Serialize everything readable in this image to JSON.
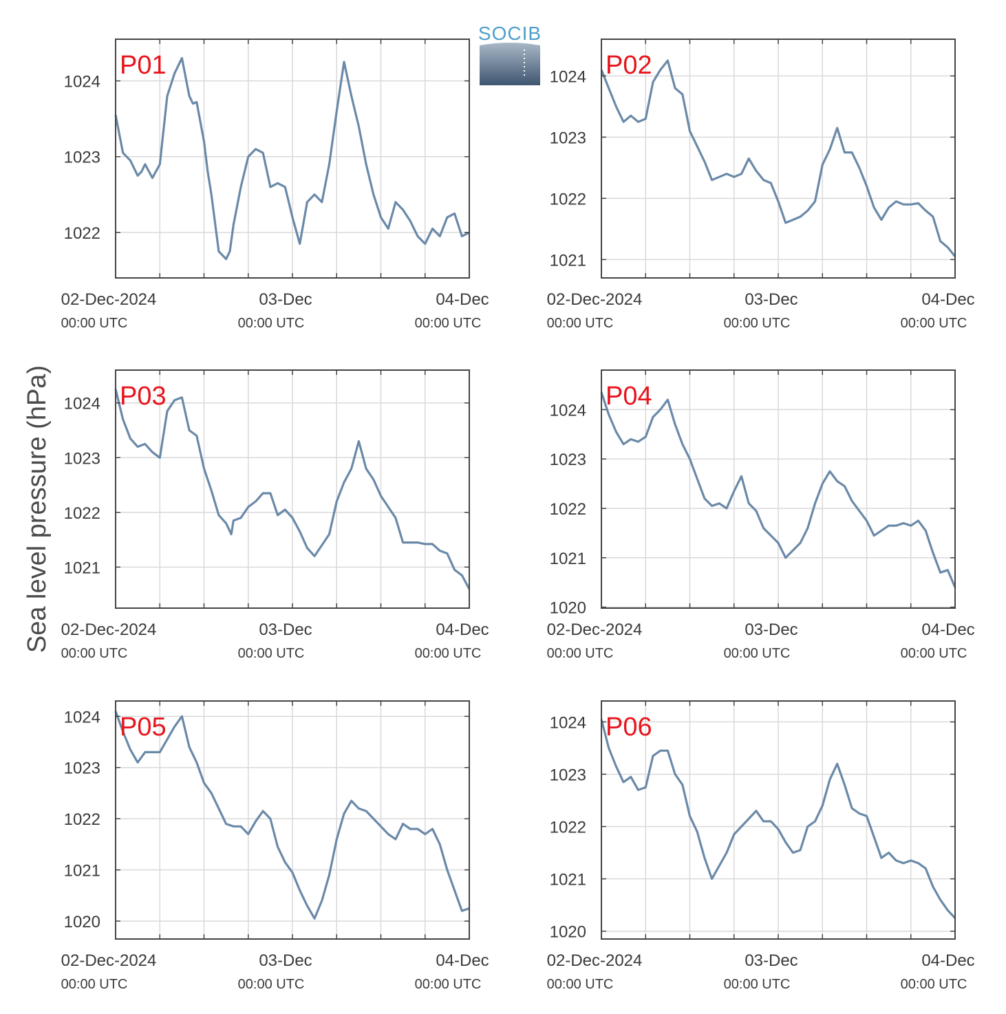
{
  "ylabel": "Sea level pressure (hPa)",
  "logo": {
    "text": "SOCIB"
  },
  "colors": {
    "series": "#6a89a8",
    "title": "#e8141c",
    "grid": "#d9d9d9",
    "axis": "#444444"
  },
  "chart_data": [
    {
      "type": "line",
      "title": "P01",
      "xticks": [
        {
          "t": 0,
          "label": "02-Dec-2024",
          "sub": "00:00 UTC"
        },
        {
          "t": 24,
          "label": "03-Dec",
          "sub": "00:00 UTC"
        },
        {
          "t": 48,
          "label": "04-Dec",
          "sub": "00:00 UTC"
        }
      ],
      "yticks": [
        1022,
        1023,
        1024
      ],
      "ylim": [
        1021.4,
        1024.55
      ],
      "xlim": [
        0,
        48
      ],
      "x": [
        0,
        1,
        2,
        3,
        3.5,
        4,
        5,
        6,
        7,
        8,
        9,
        10,
        10.5,
        11,
        12,
        12.5,
        13,
        14,
        15,
        15.5,
        16,
        17,
        17.5,
        18,
        19,
        20,
        21,
        22,
        23,
        24,
        25,
        26,
        27,
        28,
        29,
        30,
        31,
        32,
        33,
        34,
        35,
        36,
        37,
        38,
        39,
        40,
        41,
        42,
        43,
        44,
        45,
        46,
        47,
        48
      ],
      "values": [
        1023.55,
        1023.05,
        1022.95,
        1022.75,
        1022.8,
        1022.9,
        1022.72,
        1022.9,
        1023.8,
        1024.1,
        1024.3,
        1023.8,
        1023.7,
        1023.72,
        1023.2,
        1022.8,
        1022.5,
        1021.75,
        1021.65,
        1021.75,
        1022.1,
        1022.6,
        1022.8,
        1023.0,
        1023.1,
        1023.05,
        1022.6,
        1022.65,
        1022.6,
        1022.2,
        1021.85,
        1022.4,
        1022.5,
        1022.4,
        1022.9,
        1023.6,
        1024.25,
        1023.8,
        1023.4,
        1022.9,
        1022.5,
        1022.2,
        1022.05,
        1022.4,
        1022.3,
        1022.15,
        1021.95,
        1021.85,
        1022.05,
        1021.95,
        1022.2,
        1022.25,
        1021.95,
        1022.0
      ]
    },
    {
      "type": "line",
      "title": "P02",
      "xticks": [
        {
          "t": 0,
          "label": "02-Dec-2024",
          "sub": "00:00 UTC"
        },
        {
          "t": 24,
          "label": "03-Dec",
          "sub": "00:00 UTC"
        },
        {
          "t": 48,
          "label": "04-Dec",
          "sub": "00:00 UTC"
        }
      ],
      "yticks": [
        1021,
        1022,
        1023,
        1024
      ],
      "ylim": [
        1020.7,
        1024.6
      ],
      "xlim": [
        0,
        48
      ],
      "x": [
        0,
        1,
        2,
        3,
        4,
        5,
        6,
        7,
        8,
        9,
        10,
        11,
        12,
        13,
        14,
        15,
        16,
        17,
        18,
        19,
        20,
        21,
        22,
        23,
        24,
        25,
        26,
        27,
        28,
        29,
        30,
        31,
        32,
        33,
        34,
        35,
        36,
        37,
        38,
        39,
        40,
        41,
        42,
        43,
        44,
        45,
        46,
        47,
        48
      ],
      "values": [
        1024.1,
        1023.8,
        1023.5,
        1023.25,
        1023.35,
        1023.25,
        1023.3,
        1023.9,
        1024.1,
        1024.25,
        1023.8,
        1023.7,
        1023.1,
        1022.85,
        1022.6,
        1022.3,
        1022.35,
        1022.4,
        1022.35,
        1022.4,
        1022.65,
        1022.45,
        1022.3,
        1022.25,
        1021.95,
        1021.6,
        1021.65,
        1021.7,
        1021.8,
        1021.95,
        1022.55,
        1022.8,
        1023.15,
        1022.75,
        1022.75,
        1022.5,
        1022.2,
        1021.85,
        1021.65,
        1021.85,
        1021.95,
        1021.9,
        1021.9,
        1021.92,
        1021.8,
        1021.7,
        1021.3,
        1021.2,
        1021.05
      ]
    },
    {
      "type": "line",
      "title": "P03",
      "xticks": [
        {
          "t": 0,
          "label": "02-Dec-2024",
          "sub": "00:00 UTC"
        },
        {
          "t": 24,
          "label": "03-Dec",
          "sub": "00:00 UTC"
        },
        {
          "t": 48,
          "label": "04-Dec",
          "sub": "00:00 UTC"
        }
      ],
      "yticks": [
        1021,
        1022,
        1023,
        1024
      ],
      "ylim": [
        1020.25,
        1024.6
      ],
      "xlim": [
        0,
        48
      ],
      "x": [
        0,
        1,
        2,
        3,
        4,
        5,
        6,
        7,
        8,
        9,
        10,
        11,
        12,
        13,
        14,
        15,
        15.7,
        16,
        17,
        18,
        19,
        20,
        21,
        22,
        23,
        24,
        25,
        26,
        27,
        28,
        29,
        30,
        31,
        32,
        33,
        34,
        35,
        36,
        37,
        38,
        39,
        40,
        41,
        42,
        43,
        44,
        45,
        46,
        47,
        48
      ],
      "values": [
        1024.25,
        1023.7,
        1023.35,
        1023.2,
        1023.25,
        1023.1,
        1023.0,
        1023.85,
        1024.05,
        1024.1,
        1023.5,
        1023.4,
        1022.8,
        1022.4,
        1021.95,
        1021.8,
        1021.6,
        1021.85,
        1021.9,
        1022.1,
        1022.2,
        1022.35,
        1022.35,
        1021.95,
        1022.05,
        1021.9,
        1021.65,
        1021.35,
        1021.2,
        1021.4,
        1021.6,
        1022.2,
        1022.55,
        1022.8,
        1023.3,
        1022.8,
        1022.6,
        1022.3,
        1022.1,
        1021.9,
        1021.45,
        1021.45,
        1021.45,
        1021.42,
        1021.42,
        1021.3,
        1021.25,
        1020.95,
        1020.85,
        1020.6
      ]
    },
    {
      "type": "line",
      "title": "P04",
      "xticks": [
        {
          "t": 0,
          "label": "02-Dec-2024",
          "sub": "00:00 UTC"
        },
        {
          "t": 24,
          "label": "03-Dec",
          "sub": "00:00 UTC"
        },
        {
          "t": 48,
          "label": "04-Dec",
          "sub": "00:00 UTC"
        }
      ],
      "yticks": [
        1020,
        1021,
        1022,
        1023,
        1024
      ],
      "ylim": [
        1019.98,
        1024.8
      ],
      "xlim": [
        0,
        48
      ],
      "x": [
        0,
        1,
        2,
        3,
        4,
        5,
        6,
        7,
        8,
        9,
        10,
        11,
        12,
        13,
        14,
        15,
        16,
        17,
        18,
        19,
        20,
        21,
        22,
        23,
        24,
        25,
        26,
        27,
        28,
        29,
        30,
        31,
        32,
        33,
        34,
        35,
        36,
        37,
        38,
        39,
        40,
        41,
        42,
        43,
        44,
        45,
        46,
        47,
        48
      ],
      "values": [
        1024.35,
        1023.9,
        1023.55,
        1023.3,
        1023.4,
        1023.35,
        1023.45,
        1023.85,
        1024.0,
        1024.2,
        1023.7,
        1023.3,
        1023.0,
        1022.6,
        1022.2,
        1022.05,
        1022.1,
        1022.0,
        1022.35,
        1022.65,
        1022.1,
        1021.95,
        1021.6,
        1021.45,
        1021.3,
        1021.0,
        1021.15,
        1021.3,
        1021.6,
        1022.1,
        1022.5,
        1022.75,
        1022.55,
        1022.45,
        1022.15,
        1021.95,
        1021.75,
        1021.45,
        1021.55,
        1021.65,
        1021.65,
        1021.7,
        1021.65,
        1021.75,
        1021.55,
        1021.1,
        1020.7,
        1020.75,
        1020.4
      ]
    },
    {
      "type": "line",
      "title": "P05",
      "xticks": [
        {
          "t": 0,
          "label": "02-Dec-2024",
          "sub": "00:00 UTC"
        },
        {
          "t": 24,
          "label": "03-Dec",
          "sub": "00:00 UTC"
        },
        {
          "t": 48,
          "label": "04-Dec",
          "sub": "00:00 UTC"
        }
      ],
      "yticks": [
        1020,
        1021,
        1022,
        1023,
        1024
      ],
      "ylim": [
        1019.65,
        1024.3
      ],
      "xlim": [
        0,
        48
      ],
      "x": [
        0,
        1,
        2,
        3,
        4,
        5,
        6,
        7,
        8,
        9,
        10,
        11,
        12,
        13,
        14,
        15,
        16,
        17,
        18,
        19,
        20,
        21,
        22,
        23,
        24,
        25,
        26,
        27,
        28,
        29,
        30,
        31,
        32,
        33,
        34,
        35,
        36,
        37,
        38,
        39,
        40,
        41,
        42,
        43,
        44,
        45,
        46,
        47,
        48
      ],
      "values": [
        1024.1,
        1023.7,
        1023.35,
        1023.1,
        1023.3,
        1023.3,
        1023.3,
        1023.55,
        1023.8,
        1024.0,
        1023.4,
        1023.1,
        1022.7,
        1022.5,
        1022.2,
        1021.9,
        1021.85,
        1021.85,
        1021.7,
        1021.95,
        1022.15,
        1022.0,
        1021.45,
        1021.15,
        1020.95,
        1020.6,
        1020.3,
        1020.05,
        1020.4,
        1020.9,
        1021.6,
        1022.1,
        1022.35,
        1022.2,
        1022.15,
        1022.0,
        1021.85,
        1021.7,
        1021.6,
        1021.9,
        1021.8,
        1021.8,
        1021.7,
        1021.8,
        1021.5,
        1021.0,
        1020.6,
        1020.2,
        1020.25
      ]
    },
    {
      "type": "line",
      "title": "P06",
      "xticks": [
        {
          "t": 0,
          "label": "02-Dec-2024",
          "sub": "00:00 UTC"
        },
        {
          "t": 24,
          "label": "03-Dec",
          "sub": "00:00 UTC"
        },
        {
          "t": 48,
          "label": "04-Dec",
          "sub": "00:00 UTC"
        }
      ],
      "yticks": [
        1020,
        1021,
        1022,
        1023,
        1024
      ],
      "ylim": [
        1019.85,
        1024.4
      ],
      "xlim": [
        0,
        48
      ],
      "x": [
        0,
        1,
        2,
        3,
        4,
        5,
        6,
        7,
        8,
        9,
        10,
        11,
        12,
        13,
        14,
        15,
        16,
        17,
        18,
        19,
        20,
        21,
        22,
        23,
        24,
        25,
        26,
        27,
        28,
        29,
        30,
        31,
        32,
        33,
        34,
        35,
        36,
        37,
        38,
        39,
        40,
        41,
        42,
        43,
        44,
        45,
        46,
        47,
        48
      ],
      "values": [
        1024.05,
        1023.5,
        1023.15,
        1022.85,
        1022.95,
        1022.7,
        1022.75,
        1023.35,
        1023.45,
        1023.45,
        1023.0,
        1022.8,
        1022.2,
        1021.9,
        1021.4,
        1021.0,
        1021.25,
        1021.5,
        1021.85,
        1022.0,
        1022.15,
        1022.3,
        1022.1,
        1022.1,
        1021.95,
        1021.7,
        1021.5,
        1021.55,
        1022.0,
        1022.1,
        1022.4,
        1022.9,
        1023.2,
        1022.8,
        1022.35,
        1022.25,
        1022.2,
        1021.8,
        1021.4,
        1021.5,
        1021.35,
        1021.3,
        1021.35,
        1021.3,
        1021.2,
        1020.85,
        1020.6,
        1020.4,
        1020.25
      ]
    }
  ]
}
